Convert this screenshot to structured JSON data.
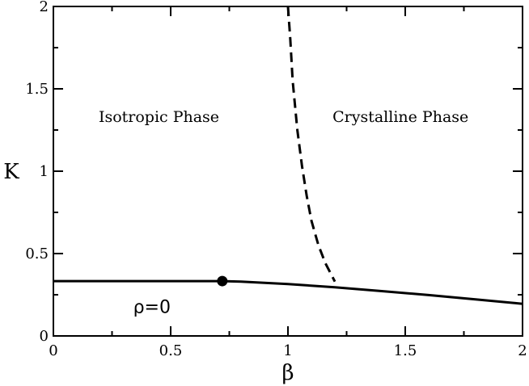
{
  "chart_data": {
    "type": "line",
    "xlabel": "β",
    "ylabel": "K",
    "xlim": [
      0,
      2
    ],
    "ylim": [
      0,
      2
    ],
    "xticks": [
      0,
      0.5,
      1,
      1.5,
      2
    ],
    "xtick_labels": [
      "0",
      "0.5",
      "1",
      "1.5",
      "2"
    ],
    "yticks": [
      0,
      0.5,
      1,
      1.5,
      2
    ],
    "ytick_labels": [
      "0",
      "0.5",
      "1",
      "1.5",
      "2"
    ],
    "x_minor_step": 0.25,
    "y_minor_step": 0.25,
    "grid": false,
    "series": [
      {
        "style": "solid",
        "color": "#000000",
        "x": [
          0,
          0.25,
          0.5,
          0.72,
          0.8,
          1.0,
          1.2,
          1.4,
          1.6,
          1.8,
          2.0
        ],
        "y": [
          0.333,
          0.333,
          0.333,
          0.333,
          0.33,
          0.315,
          0.295,
          0.272,
          0.248,
          0.222,
          0.195
        ]
      },
      {
        "style": "dashed",
        "color": "#000000",
        "x": [
          1.0,
          1.01,
          1.02,
          1.04,
          1.06,
          1.08,
          1.1,
          1.13,
          1.16,
          1.2
        ],
        "y": [
          2.0,
          1.8,
          1.55,
          1.25,
          1.03,
          0.85,
          0.7,
          0.55,
          0.44,
          0.33
        ]
      }
    ],
    "markers": [
      {
        "x": 0.72,
        "y": 0.333,
        "shape": "filled-circle",
        "color": "#000000"
      }
    ],
    "annotations": [
      {
        "key": "isotropic",
        "text": "Isotropic Phase",
        "x": 0.45,
        "y": 1.3
      },
      {
        "key": "crystalline",
        "text": "Crystalline Phase",
        "x": 1.48,
        "y": 1.3
      },
      {
        "key": "rho",
        "text": "ρ=0",
        "x": 0.42,
        "y": 0.14
      }
    ]
  }
}
